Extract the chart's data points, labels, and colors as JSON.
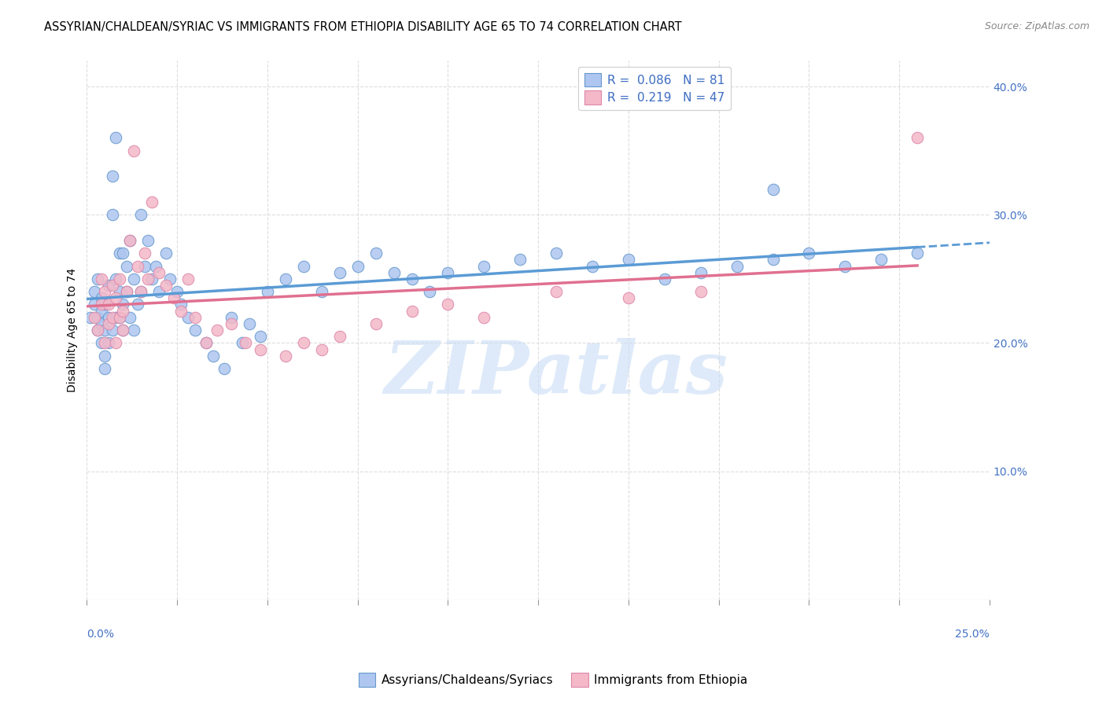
{
  "title": "ASSYRIAN/CHALDEAN/SYRIAC VS IMMIGRANTS FROM ETHIOPIA DISABILITY AGE 65 TO 74 CORRELATION CHART",
  "source": "Source: ZipAtlas.com",
  "ylabel": "Disability Age 65 to 74",
  "xlim": [
    0.0,
    0.25
  ],
  "ylim": [
    0.0,
    0.42
  ],
  "yticks_right": [
    0.1,
    0.2,
    0.3,
    0.4
  ],
  "ytick_labels_right": [
    "10.0%",
    "20.0%",
    "30.0%",
    "40.0%"
  ],
  "series1_label": "Assyrians/Chaldeans/Syriacs",
  "series1_color": "#aec6f0",
  "series1_edge_color": "#6699cc",
  "series1_R": 0.086,
  "series1_N": 81,
  "series1_line_color": "#5b9bd5",
  "series2_label": "Immigrants from Ethiopia",
  "series2_color": "#f4b8c8",
  "series2_edge_color": "#dd88aa",
  "series2_R": 0.219,
  "series2_N": 47,
  "series2_line_color": "#e07090",
  "legend_R_color": "#4472c4",
  "title_fontsize": 10.5,
  "source_fontsize": 9,
  "axis_label_fontsize": 10,
  "tick_fontsize": 10,
  "legend_fontsize": 11,
  "watermark": "ZIPatlas",
  "background_color": "#ffffff",
  "grid_color": "#dddddd",
  "blue_x": [
    0.001,
    0.002,
    0.002,
    0.003,
    0.003,
    0.003,
    0.004,
    0.004,
    0.004,
    0.004,
    0.005,
    0.005,
    0.005,
    0.005,
    0.006,
    0.006,
    0.006,
    0.007,
    0.007,
    0.007,
    0.008,
    0.008,
    0.008,
    0.009,
    0.009,
    0.009,
    0.01,
    0.01,
    0.01,
    0.011,
    0.011,
    0.012,
    0.012,
    0.013,
    0.013,
    0.014,
    0.015,
    0.015,
    0.016,
    0.017,
    0.018,
    0.019,
    0.02,
    0.022,
    0.023,
    0.025,
    0.026,
    0.028,
    0.03,
    0.033,
    0.035,
    0.038,
    0.04,
    0.043,
    0.045,
    0.048,
    0.05,
    0.055,
    0.06,
    0.065,
    0.07,
    0.075,
    0.08,
    0.085,
    0.09,
    0.095,
    0.1,
    0.11,
    0.12,
    0.13,
    0.14,
    0.15,
    0.16,
    0.17,
    0.18,
    0.19,
    0.2,
    0.21,
    0.22,
    0.23,
    0.19
  ],
  "blue_y": [
    0.22,
    0.23,
    0.24,
    0.21,
    0.22,
    0.25,
    0.2,
    0.215,
    0.225,
    0.235,
    0.18,
    0.19,
    0.21,
    0.23,
    0.22,
    0.2,
    0.245,
    0.33,
    0.3,
    0.21,
    0.36,
    0.25,
    0.22,
    0.27,
    0.24,
    0.22,
    0.23,
    0.27,
    0.21,
    0.26,
    0.24,
    0.28,
    0.22,
    0.25,
    0.21,
    0.23,
    0.3,
    0.24,
    0.26,
    0.28,
    0.25,
    0.26,
    0.24,
    0.27,
    0.25,
    0.24,
    0.23,
    0.22,
    0.21,
    0.2,
    0.19,
    0.18,
    0.22,
    0.2,
    0.215,
    0.205,
    0.24,
    0.25,
    0.26,
    0.24,
    0.255,
    0.26,
    0.27,
    0.255,
    0.25,
    0.24,
    0.255,
    0.26,
    0.265,
    0.27,
    0.26,
    0.265,
    0.25,
    0.255,
    0.26,
    0.265,
    0.27,
    0.26,
    0.265,
    0.27,
    0.32
  ],
  "pink_x": [
    0.002,
    0.003,
    0.004,
    0.004,
    0.005,
    0.005,
    0.006,
    0.006,
    0.007,
    0.007,
    0.008,
    0.008,
    0.009,
    0.009,
    0.01,
    0.01,
    0.011,
    0.012,
    0.013,
    0.014,
    0.015,
    0.016,
    0.017,
    0.018,
    0.02,
    0.022,
    0.024,
    0.026,
    0.028,
    0.03,
    0.033,
    0.036,
    0.04,
    0.044,
    0.048,
    0.055,
    0.06,
    0.065,
    0.07,
    0.08,
    0.09,
    0.1,
    0.11,
    0.13,
    0.15,
    0.17,
    0.23
  ],
  "pink_y": [
    0.22,
    0.21,
    0.23,
    0.25,
    0.2,
    0.24,
    0.215,
    0.23,
    0.22,
    0.245,
    0.235,
    0.2,
    0.22,
    0.25,
    0.21,
    0.225,
    0.24,
    0.28,
    0.35,
    0.26,
    0.24,
    0.27,
    0.25,
    0.31,
    0.255,
    0.245,
    0.235,
    0.225,
    0.25,
    0.22,
    0.2,
    0.21,
    0.215,
    0.2,
    0.195,
    0.19,
    0.2,
    0.195,
    0.205,
    0.215,
    0.225,
    0.23,
    0.22,
    0.24,
    0.235,
    0.24,
    0.36
  ]
}
